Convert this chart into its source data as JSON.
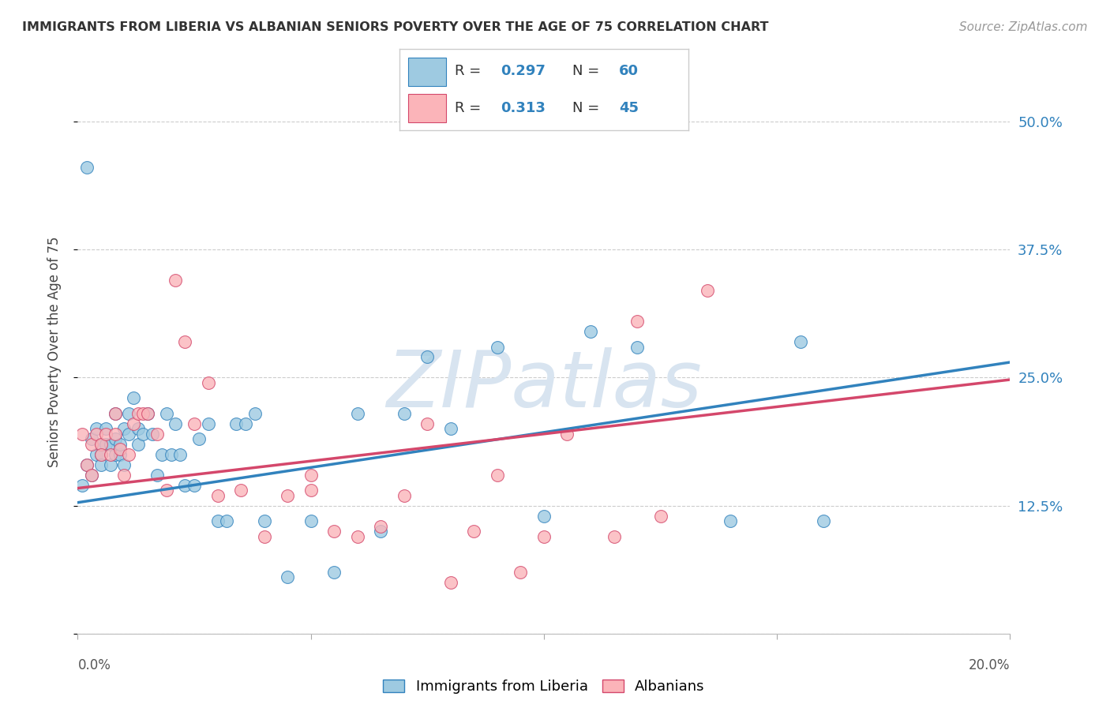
{
  "title": "IMMIGRANTS FROM LIBERIA VS ALBANIAN SENIORS POVERTY OVER THE AGE OF 75 CORRELATION CHART",
  "source": "Source: ZipAtlas.com",
  "ylabel": "Seniors Poverty Over the Age of 75",
  "xlim": [
    0.0,
    0.2
  ],
  "ylim": [
    0.0,
    0.55
  ],
  "ytick_positions": [
    0.0,
    0.125,
    0.25,
    0.375,
    0.5
  ],
  "ytick_labels": [
    "",
    "12.5%",
    "25.0%",
    "37.5%",
    "50.0%"
  ],
  "color_blue": "#9ecae1",
  "color_blue_edge": "#3182bd",
  "color_pink": "#fbb4b9",
  "color_pink_edge": "#d4476b",
  "line_color_blue": "#3182bd",
  "line_color_pink": "#d4476b",
  "tick_label_color": "#3182bd",
  "watermark": "ZIPatlas",
  "watermark_color": "#d8e4f0",
  "legend_r1": "0.297",
  "legend_n1": "60",
  "legend_r2": "0.313",
  "legend_n2": "45",
  "blue_x": [
    0.001,
    0.002,
    0.003,
    0.003,
    0.004,
    0.004,
    0.005,
    0.005,
    0.005,
    0.006,
    0.006,
    0.007,
    0.007,
    0.008,
    0.008,
    0.008,
    0.009,
    0.009,
    0.01,
    0.01,
    0.011,
    0.011,
    0.012,
    0.013,
    0.013,
    0.014,
    0.015,
    0.016,
    0.017,
    0.018,
    0.019,
    0.02,
    0.021,
    0.022,
    0.023,
    0.025,
    0.026,
    0.028,
    0.03,
    0.032,
    0.034,
    0.036,
    0.038,
    0.04,
    0.045,
    0.05,
    0.055,
    0.06,
    0.065,
    0.07,
    0.08,
    0.09,
    0.1,
    0.11,
    0.12,
    0.14,
    0.16,
    0.155,
    0.002,
    0.075
  ],
  "blue_y": [
    0.145,
    0.165,
    0.19,
    0.155,
    0.2,
    0.175,
    0.175,
    0.165,
    0.185,
    0.2,
    0.185,
    0.185,
    0.165,
    0.175,
    0.19,
    0.215,
    0.175,
    0.185,
    0.2,
    0.165,
    0.215,
    0.195,
    0.23,
    0.185,
    0.2,
    0.195,
    0.215,
    0.195,
    0.155,
    0.175,
    0.215,
    0.175,
    0.205,
    0.175,
    0.145,
    0.145,
    0.19,
    0.205,
    0.11,
    0.11,
    0.205,
    0.205,
    0.215,
    0.11,
    0.055,
    0.11,
    0.06,
    0.215,
    0.1,
    0.215,
    0.2,
    0.28,
    0.115,
    0.295,
    0.28,
    0.11,
    0.11,
    0.285,
    0.455,
    0.27
  ],
  "pink_x": [
    0.001,
    0.002,
    0.003,
    0.003,
    0.004,
    0.005,
    0.005,
    0.006,
    0.007,
    0.008,
    0.008,
    0.009,
    0.01,
    0.011,
    0.012,
    0.013,
    0.014,
    0.015,
    0.017,
    0.019,
    0.021,
    0.023,
    0.025,
    0.028,
    0.03,
    0.035,
    0.04,
    0.045,
    0.05,
    0.06,
    0.07,
    0.08,
    0.09,
    0.1,
    0.12,
    0.05,
    0.055,
    0.065,
    0.075,
    0.085,
    0.095,
    0.105,
    0.115,
    0.125,
    0.135
  ],
  "pink_y": [
    0.195,
    0.165,
    0.185,
    0.155,
    0.195,
    0.185,
    0.175,
    0.195,
    0.175,
    0.195,
    0.215,
    0.18,
    0.155,
    0.175,
    0.205,
    0.215,
    0.215,
    0.215,
    0.195,
    0.14,
    0.345,
    0.285,
    0.205,
    0.245,
    0.135,
    0.14,
    0.095,
    0.135,
    0.14,
    0.095,
    0.135,
    0.05,
    0.155,
    0.095,
    0.305,
    0.155,
    0.1,
    0.105,
    0.205,
    0.1,
    0.06,
    0.195,
    0.095,
    0.115,
    0.335
  ],
  "blue_trend_x": [
    0.0,
    0.2
  ],
  "blue_trend_y": [
    0.128,
    0.265
  ],
  "pink_trend_x": [
    0.0,
    0.2
  ],
  "pink_trend_y": [
    0.142,
    0.248
  ]
}
